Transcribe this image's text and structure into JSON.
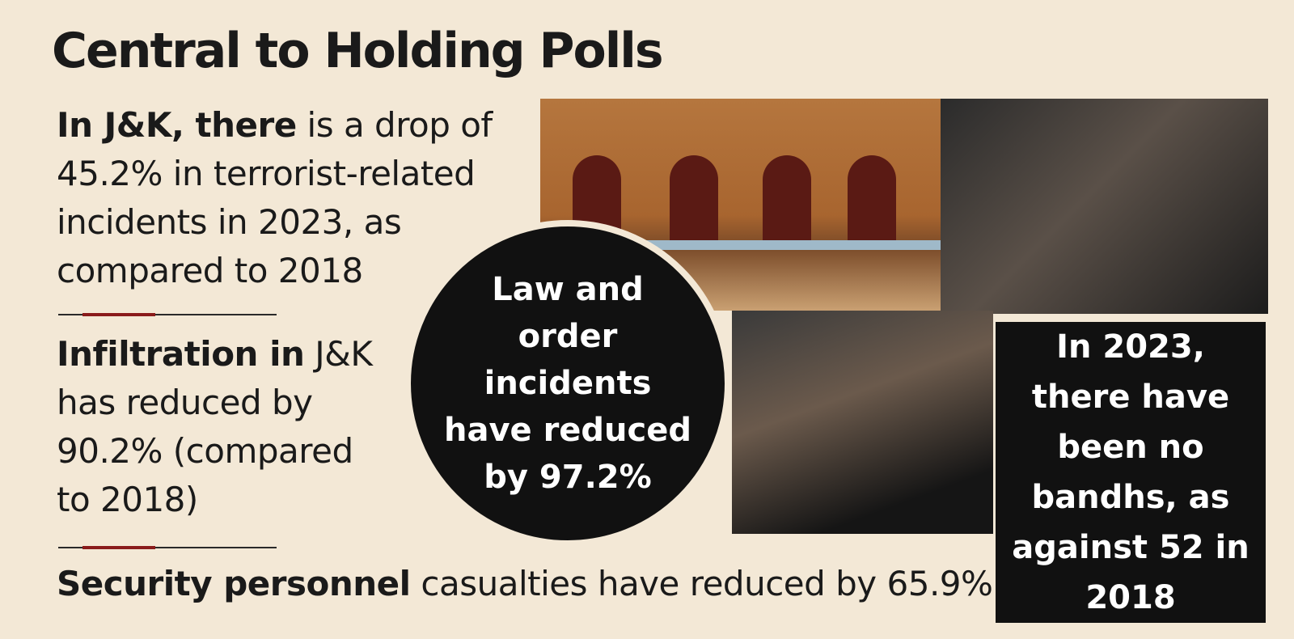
{
  "title": "Central to Holding Polls",
  "facts": [
    {
      "bold": "In J&K, there",
      "text": " is a drop of 45.2% in terrorist-related incidents in 2023, as compared to 2018"
    },
    {
      "bold": "Infiltration in",
      "text": " J&K has reduced by 90.2% (compared to 2018)"
    },
    {
      "bold": "Security personnel",
      "text": " casualties have reduced by 65.9%"
    }
  ],
  "circle": "Law and order incidents have reduced by 97.2%",
  "box": "In 2023, there have been no bandhs, as against 52 in 2018"
}
